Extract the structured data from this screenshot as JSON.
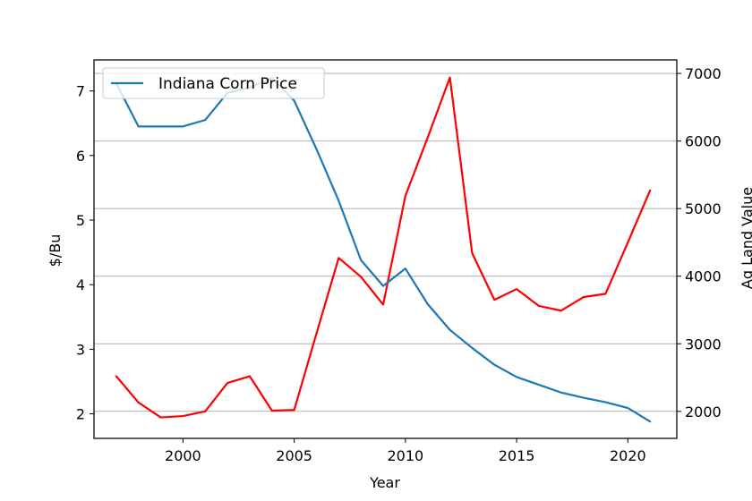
{
  "chart_data": {
    "type": "line",
    "title": "",
    "xlabel": "Year",
    "ylabel_left": "$/Bu",
    "ylabel_right": "Ag Land Value",
    "xlim": [
      1996,
      2022.2
    ],
    "ylim_left": [
      1.62,
      7.48
    ],
    "ylim_right": [
      1600,
      7200
    ],
    "x_ticks": [
      2000,
      2005,
      2010,
      2015,
      2020
    ],
    "y_ticks_left": [
      2,
      3,
      4,
      5,
      6,
      7
    ],
    "y_ticks_right": [
      2000,
      3000,
      4000,
      5000,
      6000,
      7000
    ],
    "grid": "horizontal lines at right-axis ticks",
    "legend": "upper-left",
    "series": [
      {
        "name": "Indiana Corn Price",
        "axis": "left",
        "color": "#1f77b4",
        "x": [
          1997,
          1998,
          1999,
          2000,
          2001,
          2002,
          2003,
          2004,
          2005,
          2006,
          2007,
          2008,
          2009,
          2010,
          2011,
          2012,
          2013,
          2014,
          2015,
          2016,
          2017,
          2018,
          2019,
          2020,
          2021
        ],
        "y": [
          7.12,
          6.45,
          6.45,
          6.45,
          6.55,
          6.97,
          7.05,
          7.2,
          6.85,
          6.1,
          5.3,
          4.38,
          3.98,
          4.25,
          3.7,
          3.3,
          3.02,
          2.76,
          2.57,
          2.45,
          2.33,
          2.25,
          2.18,
          2.09,
          1.88
        ]
      },
      {
        "axis": "right",
        "color": "#ff0000",
        "x": [
          1997,
          1998,
          1999,
          2000,
          2001,
          2002,
          2003,
          2004,
          2005,
          2006,
          2007,
          2008,
          2009,
          2010,
          2011,
          2012,
          2013,
          2014,
          2015,
          2016,
          2017,
          2018,
          2019,
          2020,
          2021
        ],
        "y": [
          2520,
          2130,
          1910,
          1930,
          2000,
          2420,
          2520,
          2010,
          2020,
          3150,
          4270,
          3990,
          3580,
          5190,
          6050,
          6940,
          4340,
          3650,
          3810,
          3560,
          3490,
          3690,
          3740,
          4500,
          5270
        ]
      }
    ]
  }
}
